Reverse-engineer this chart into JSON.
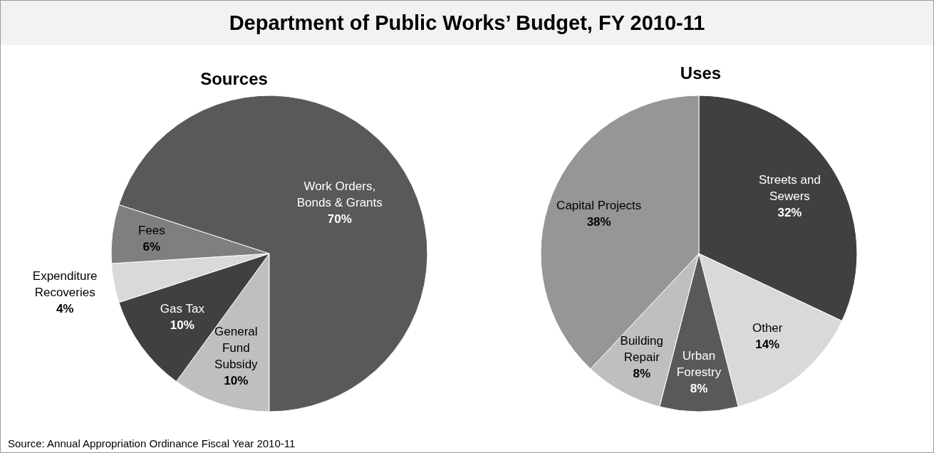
{
  "chart_data": [
    {
      "type": "other",
      "title": "Department of Public Works’ Budget, FY 2010-11",
      "annotations": [
        "Source: Annual Appropriation Ordinance Fiscal Year 2010-11"
      ]
    },
    {
      "type": "pie",
      "title": "Sources",
      "categories": [
        "General\nFund\nSubsidy",
        "Gas Tax",
        "Expenditure\nRecoveries",
        "Fees",
        "Work Orders,\nBonds & Grants"
      ],
      "values": [
        10,
        10,
        4,
        6,
        70
      ],
      "value_labels": [
        "10%",
        "10%",
        "4%",
        "6%",
        "70%"
      ],
      "colors": [
        "#bfbfbf",
        "#404040",
        "#d9d9d9",
        "#7f7f7f",
        "#595959"
      ]
    },
    {
      "type": "pie",
      "title": "Uses",
      "categories": [
        "Streets and\nSewers",
        "Other",
        "Urban\nForestry",
        "Building\nRepair",
        "Capital Projects"
      ],
      "values": [
        32,
        14,
        8,
        8,
        38
      ],
      "value_labels": [
        "32%",
        "14%",
        "8%",
        "8%",
        "38%"
      ],
      "colors": [
        "#404040",
        "#d9d9d9",
        "#595959",
        "#bfbfbf",
        "#969696"
      ]
    }
  ]
}
